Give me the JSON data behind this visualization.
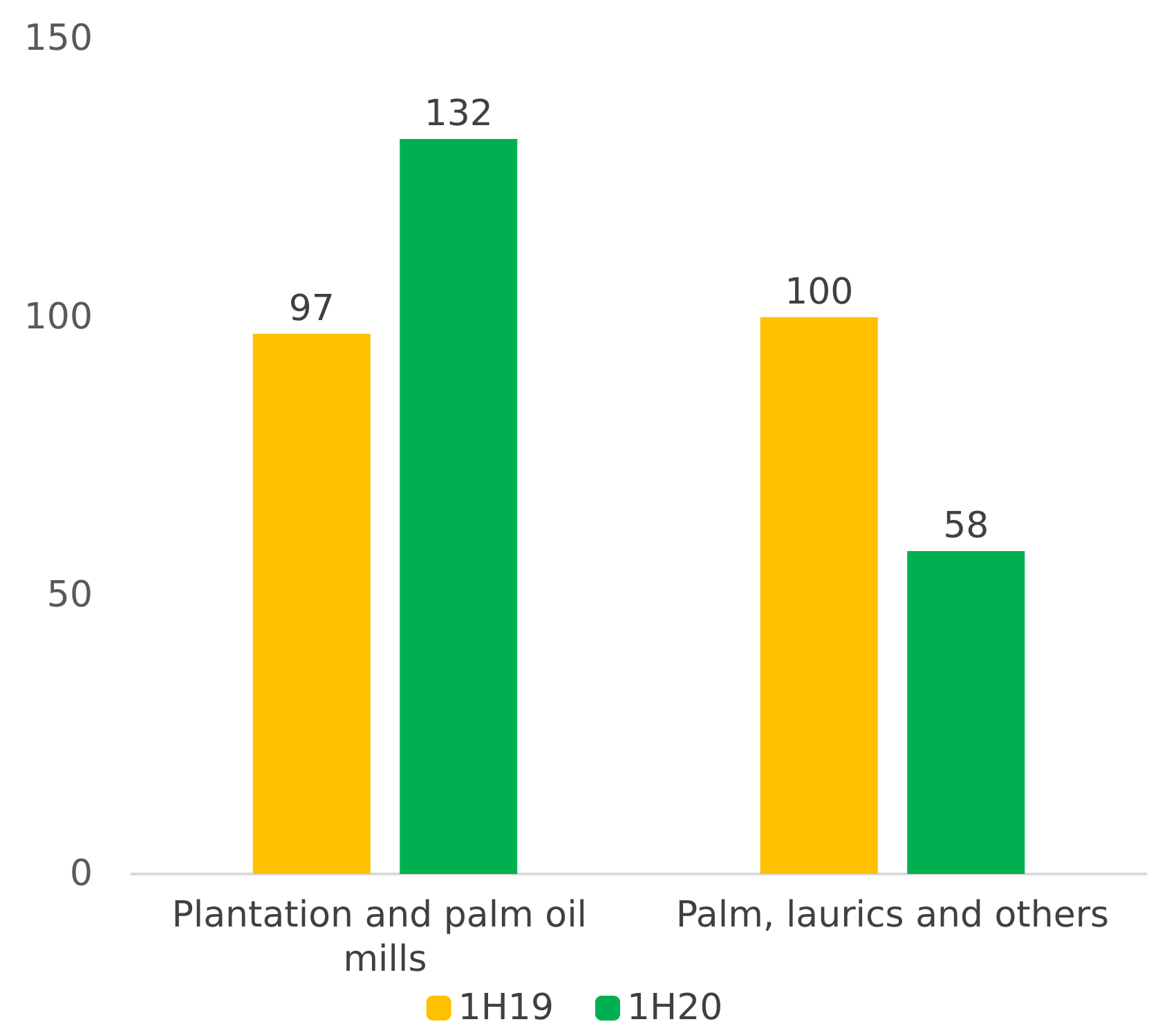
{
  "chart_data": {
    "type": "bar",
    "categories": [
      "Plantation and palm oil mills",
      "Palm, laurics and others"
    ],
    "series": [
      {
        "name": "1H19",
        "color": "#ffc000",
        "values": [
          97,
          100
        ]
      },
      {
        "name": "1H20",
        "color": "#00b050",
        "values": [
          132,
          58
        ]
      }
    ],
    "ylim": [
      0,
      150
    ],
    "yticks": [
      0,
      50,
      100,
      150
    ],
    "grid": false,
    "legend": "bottom",
    "data_labels": true
  }
}
